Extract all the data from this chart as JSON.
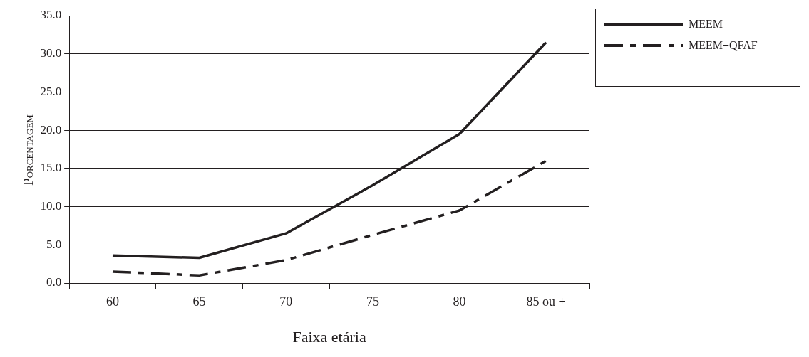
{
  "chart_data": {
    "type": "line",
    "xlabel": "Faixa etária",
    "ylabel": "Porcentagem",
    "categories": [
      "60",
      "65",
      "70",
      "75",
      "80",
      "85 ou +"
    ],
    "series": [
      {
        "name": "MEEM",
        "color": "#231f20",
        "line_style": "solid",
        "values": [
          3.6,
          3.3,
          6.5,
          12.8,
          19.5,
          31.5
        ]
      },
      {
        "name": "MEEM+QFAF",
        "color": "#231f20",
        "line_style": "dashed",
        "values": [
          1.5,
          1.0,
          3.0,
          6.3,
          9.5,
          16.0
        ]
      }
    ],
    "ylim": [
      0,
      35
    ],
    "yticks": [
      {
        "value": 0,
        "label": "0.0"
      },
      {
        "value": 5,
        "label": "5.0"
      },
      {
        "value": 10,
        "label": "10.0"
      },
      {
        "value": 15,
        "label": "15.0"
      },
      {
        "value": 20,
        "label": "20.0"
      },
      {
        "value": 25,
        "label": "25.0"
      },
      {
        "value": 30,
        "label": "30.0"
      },
      {
        "value": 35,
        "label": "35.0"
      }
    ],
    "grid": "y",
    "legend": "top right",
    "marker": "none"
  }
}
